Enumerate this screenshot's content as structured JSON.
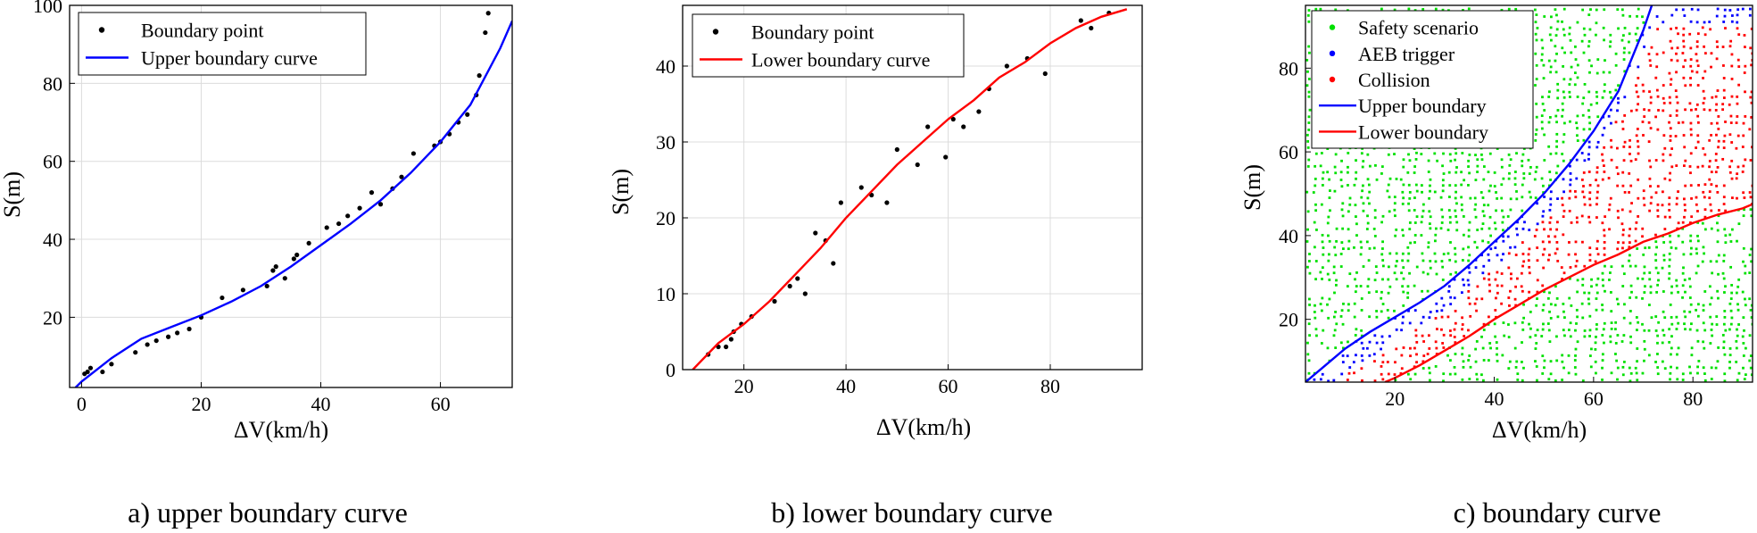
{
  "colors": {
    "blue": "#0000ff",
    "red": "#ff0000",
    "green": "#00e000",
    "black": "#000000",
    "grid": "#dcdcdc"
  },
  "chart_data": [
    {
      "type": "scatter",
      "caption": "a) upper boundary curve",
      "xlabel": "ΔV(km/h)",
      "ylabel": "S(m)",
      "xlim": [
        -2,
        72
      ],
      "ylim": [
        2,
        100
      ],
      "xticks": [
        0,
        20,
        40,
        60
      ],
      "yticks": [
        20,
        40,
        60,
        80,
        100
      ],
      "grid": true,
      "legend": "top-left",
      "series": [
        {
          "name": "Boundary point",
          "kind": "points",
          "color": "#000000",
          "points": [
            [
              0.5,
              5.5
            ],
            [
              1,
              6
            ],
            [
              1.5,
              7
            ],
            [
              3.5,
              6
            ],
            [
              5,
              8
            ],
            [
              9,
              11
            ],
            [
              11,
              13
            ],
            [
              12.5,
              14
            ],
            [
              14.5,
              15
            ],
            [
              16,
              16
            ],
            [
              18,
              17
            ],
            [
              20,
              20
            ],
            [
              23.5,
              25
            ],
            [
              27,
              27
            ],
            [
              31,
              28
            ],
            [
              32,
              32
            ],
            [
              32.5,
              33
            ],
            [
              34,
              30
            ],
            [
              35.5,
              35
            ],
            [
              36,
              36
            ],
            [
              38,
              39
            ],
            [
              41,
              43
            ],
            [
              43,
              44
            ],
            [
              44.5,
              46
            ],
            [
              46.5,
              48
            ],
            [
              48.5,
              52
            ],
            [
              50,
              49
            ],
            [
              52,
              53
            ],
            [
              53.5,
              56
            ],
            [
              55.5,
              62
            ],
            [
              59,
              64
            ],
            [
              60,
              65
            ],
            [
              61.5,
              67
            ],
            [
              63,
              70
            ],
            [
              64.5,
              72
            ],
            [
              66,
              77
            ],
            [
              66.5,
              82
            ],
            [
              67.5,
              93
            ],
            [
              68,
              98
            ]
          ]
        },
        {
          "name": "Upper boundary curve",
          "kind": "line",
          "color": "#0000ff",
          "points": [
            [
              -1,
              2
            ],
            [
              0,
              3.5
            ],
            [
              5,
              9.5
            ],
            [
              10,
              14.5
            ],
            [
              15,
              17.5
            ],
            [
              20,
              20.5
            ],
            [
              25,
              24
            ],
            [
              30,
              28
            ],
            [
              35,
              33
            ],
            [
              40,
              38.5
            ],
            [
              45,
              44
            ],
            [
              50,
              50
            ],
            [
              55,
              57
            ],
            [
              60,
              65
            ],
            [
              65,
              74.5
            ],
            [
              70,
              89
            ],
            [
              72,
              96
            ]
          ]
        }
      ]
    },
    {
      "type": "scatter",
      "caption": "b) lower boundary curve",
      "xlabel": "ΔV(km/h)",
      "ylabel": "S(m)",
      "xlim": [
        8,
        98
      ],
      "ylim": [
        0,
        48
      ],
      "xticks": [
        20,
        40,
        60,
        80
      ],
      "yticks": [
        0,
        10,
        20,
        30,
        40
      ],
      "grid": true,
      "legend": "top-left",
      "series": [
        {
          "name": "Boundary point",
          "kind": "points",
          "color": "#000000",
          "points": [
            [
              13,
              2
            ],
            [
              15,
              3
            ],
            [
              16.5,
              3
            ],
            [
              17.5,
              4
            ],
            [
              18,
              5
            ],
            [
              19.5,
              6
            ],
            [
              21.5,
              7
            ],
            [
              26,
              9
            ],
            [
              29,
              11
            ],
            [
              30.5,
              12
            ],
            [
              32,
              10
            ],
            [
              34,
              18
            ],
            [
              36,
              17
            ],
            [
              37.5,
              14
            ],
            [
              39,
              22
            ],
            [
              43,
              24
            ],
            [
              45,
              23
            ],
            [
              48,
              22
            ],
            [
              50,
              29
            ],
            [
              54,
              27
            ],
            [
              56,
              32
            ],
            [
              59.5,
              28
            ],
            [
              61,
              33
            ],
            [
              63,
              32
            ],
            [
              66,
              34
            ],
            [
              68,
              37
            ],
            [
              71.5,
              40
            ],
            [
              75.5,
              41
            ],
            [
              79,
              39
            ],
            [
              86,
              46
            ],
            [
              88,
              45
            ],
            [
              91.5,
              47
            ]
          ]
        },
        {
          "name": "Lower boundary curve",
          "kind": "line",
          "color": "#ff0000",
          "points": [
            [
              10,
              0
            ],
            [
              15,
              3.5
            ],
            [
              20,
              6
            ],
            [
              25,
              9
            ],
            [
              30,
              12.5
            ],
            [
              35,
              16
            ],
            [
              40,
              20
            ],
            [
              45,
              23.5
            ],
            [
              50,
              27
            ],
            [
              55,
              30
            ],
            [
              60,
              33
            ],
            [
              65,
              35.5
            ],
            [
              70,
              38.5
            ],
            [
              75,
              40.5
            ],
            [
              80,
              43
            ],
            [
              85,
              45
            ],
            [
              90,
              46.5
            ],
            [
              95,
              47.5
            ]
          ]
        }
      ]
    },
    {
      "type": "scatter",
      "caption": "c) boundary curve",
      "xlabel": "ΔV(km/h)",
      "ylabel": "S(m)",
      "xlim": [
        2,
        92
      ],
      "ylim": [
        5,
        95
      ],
      "xticks": [
        20,
        40,
        60,
        80
      ],
      "yticks": [
        20,
        40,
        60,
        80
      ],
      "grid": false,
      "legend": "top-left",
      "series": [
        {
          "name": "Safety scenario",
          "kind": "points",
          "color": "#00e000",
          "points": []
        },
        {
          "name": "AEB trigger",
          "kind": "points",
          "color": "#0000ff",
          "points": []
        },
        {
          "name": "Collision",
          "kind": "points",
          "color": "#ff0000",
          "points": []
        },
        {
          "name": "Upper boundary",
          "kind": "line",
          "color": "#0000ff",
          "points": [
            [
              2,
              5
            ],
            [
              5,
              8
            ],
            [
              10,
              13
            ],
            [
              15,
              17
            ],
            [
              20,
              20.5
            ],
            [
              25,
              24
            ],
            [
              30,
              28
            ],
            [
              35,
              33
            ],
            [
              40,
              38.5
            ],
            [
              45,
              44
            ],
            [
              50,
              50
            ],
            [
              55,
              57
            ],
            [
              60,
              65
            ],
            [
              65,
              74.5
            ],
            [
              70,
              89
            ],
            [
              72,
              96
            ]
          ]
        },
        {
          "name": "Lower boundary",
          "kind": "line",
          "color": "#ff0000",
          "points": [
            [
              18,
              5
            ],
            [
              20,
              6
            ],
            [
              25,
              9
            ],
            [
              30,
              12.5
            ],
            [
              35,
              16
            ],
            [
              40,
              20
            ],
            [
              45,
              23.5
            ],
            [
              50,
              27
            ],
            [
              55,
              30
            ],
            [
              60,
              33
            ],
            [
              65,
              35.5
            ],
            [
              70,
              38.5
            ],
            [
              75,
              40.5
            ],
            [
              80,
              43
            ],
            [
              85,
              45
            ],
            [
              90,
              46.5
            ],
            [
              92,
              47.5
            ]
          ]
        }
      ]
    }
  ]
}
